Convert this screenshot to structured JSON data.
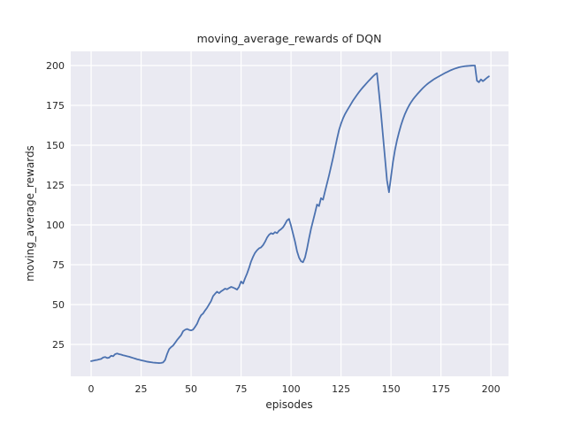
{
  "figure": {
    "title": "moving_average_rewards of DQN",
    "xlabel": "episodes",
    "ylabel": "moving_average_rewards"
  },
  "chart_data": {
    "type": "line",
    "title": "moving_average_rewards of DQN",
    "xlabel": "episodes",
    "ylabel": "moving_average_rewards",
    "legend": false,
    "grid": true,
    "x_ticks": [
      0,
      25,
      50,
      75,
      100,
      125,
      150,
      175,
      200
    ],
    "y_ticks": [
      25,
      50,
      75,
      100,
      125,
      150,
      175,
      200
    ],
    "xlim": [
      -10.2,
      208.8
    ],
    "ylim": [
      5,
      208.9
    ],
    "colors": {
      "line": "#4c72b0",
      "axes_bg": "#eaeaf2",
      "grid": "#ffffff",
      "text": "#262626",
      "fig_bg": "#ffffff"
    },
    "series": [
      {
        "name": "moving_average_rewards",
        "x_start": 0,
        "x_step": 1,
        "values": [
          14.5,
          14.8,
          15.1,
          15.3,
          15.6,
          15.9,
          16.8,
          17.1,
          16.5,
          16.7,
          17.9,
          17.6,
          18.9,
          19.3,
          18.9,
          18.6,
          18.2,
          17.9,
          17.6,
          17.3,
          16.9,
          16.5,
          16.1,
          15.7,
          15.4,
          15.1,
          14.8,
          14.5,
          14.2,
          14.0,
          13.8,
          13.6,
          13.5,
          13.4,
          13.3,
          13.4,
          13.7,
          15.2,
          19.0,
          22.0,
          23.3,
          24.3,
          26.0,
          27.8,
          29.3,
          30.8,
          33.3,
          34.2,
          34.7,
          34.1,
          33.8,
          34.3,
          36.0,
          38.0,
          41.0,
          43.3,
          44.4,
          46.3,
          48.0,
          50.1,
          52.2,
          55.3,
          56.8,
          58.1,
          57.2,
          58.3,
          59.1,
          60.0,
          59.6,
          60.4,
          61.1,
          60.7,
          60.1,
          59.4,
          61.2,
          64.5,
          63.2,
          66.5,
          69.5,
          73.0,
          77.0,
          80.0,
          82.5,
          84.1,
          85.3,
          85.9,
          87.3,
          89.4,
          92.0,
          93.8,
          94.8,
          94.3,
          95.5,
          94.8,
          96.4,
          97.3,
          98.5,
          100.5,
          102.8,
          103.8,
          99.5,
          94.5,
          89.5,
          83.5,
          79.5,
          77.2,
          76.6,
          79.5,
          85.0,
          91.5,
          97.5,
          102.5,
          107.5,
          112.8,
          111.8,
          116.8,
          115.8,
          121.0,
          126.0,
          131.0,
          136.5,
          142.0,
          148.0,
          154.0,
          159.5,
          163.5,
          166.8,
          169.5,
          171.7,
          173.8,
          175.9,
          178.0,
          179.8,
          181.6,
          183.3,
          184.9,
          186.4,
          187.8,
          189.2,
          190.6,
          191.9,
          193.2,
          194.4,
          195.2,
          183.0,
          170.0,
          156.0,
          142.0,
          128.0,
          120.5,
          130.0,
          139.5,
          147.0,
          153.0,
          158.0,
          162.5,
          166.3,
          169.6,
          172.4,
          174.8,
          176.9,
          178.7,
          180.3,
          181.8,
          183.2,
          184.6,
          185.9,
          187.1,
          188.2,
          189.2,
          190.1,
          191.0,
          191.8,
          192.5,
          193.2,
          193.9,
          194.6,
          195.3,
          195.9,
          196.5,
          197.1,
          197.6,
          198.1,
          198.5,
          198.9,
          199.2,
          199.4,
          199.6,
          199.7,
          199.8,
          199.9,
          200.0,
          200.0,
          190.5,
          189.5,
          191.3,
          190.2,
          191.2,
          192.3,
          193.2
        ]
      }
    ]
  }
}
